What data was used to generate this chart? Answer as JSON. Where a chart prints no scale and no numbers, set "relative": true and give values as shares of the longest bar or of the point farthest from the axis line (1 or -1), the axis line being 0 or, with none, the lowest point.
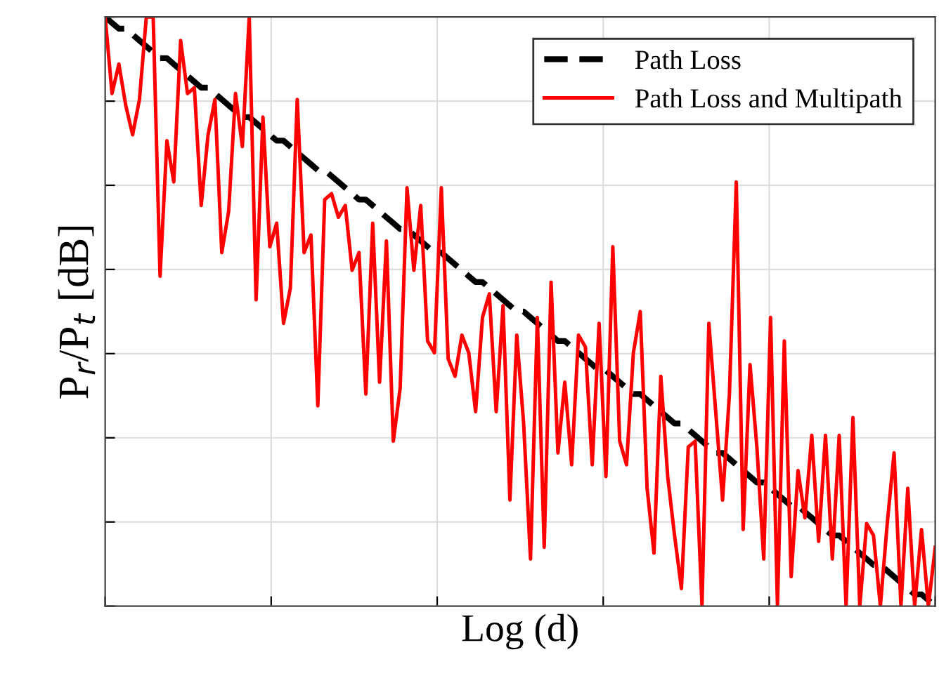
{
  "chart_data": {
    "type": "line",
    "relative": true,
    "xlabel": "Log (d)",
    "ylabel": "P$_{r}$/P$_{t}$ [dB]",
    "grid": true,
    "legend": "top right",
    "tick_labels": false,
    "categories": [
      null,
      null,
      null,
      null,
      null,
      null,
      null,
      null,
      null,
      null,
      null,
      null,
      null,
      null,
      null,
      null,
      null,
      null,
      null,
      null,
      null,
      null,
      null,
      null,
      null,
      null,
      null,
      null,
      null,
      null,
      null,
      null,
      null,
      null,
      null,
      null,
      null,
      null,
      null,
      null,
      null,
      null,
      null,
      null,
      null,
      null,
      null,
      null,
      null,
      null,
      null,
      null,
      null,
      null,
      null,
      null,
      null,
      null,
      null,
      null,
      null,
      null,
      null,
      null,
      null,
      null,
      null,
      null,
      null,
      null,
      null,
      null,
      null,
      null,
      null,
      null,
      null,
      null,
      null,
      null,
      null,
      null,
      null,
      null,
      null,
      null,
      null,
      null,
      null,
      null,
      null,
      null,
      null,
      null,
      null,
      null,
      null,
      null,
      null,
      null,
      null,
      null,
      null,
      null,
      null,
      null,
      null,
      null,
      null,
      null,
      null,
      null,
      null,
      null,
      null,
      null,
      null,
      null,
      null,
      null,
      null,
      null
    ],
    "series": [
      {
        "name": "Path Loss",
        "color": "#000000",
        "line_style": "dashed",
        "values": [
          1.0,
          0.99,
          0.98,
          0.98,
          0.97,
          0.96,
          0.95,
          0.94,
          0.93,
          0.93,
          0.92,
          0.91,
          0.9,
          0.89,
          0.88,
          0.88,
          0.87,
          0.86,
          0.85,
          0.84,
          0.83,
          0.83,
          0.82,
          0.81,
          0.8,
          0.79,
          0.79,
          0.78,
          0.77,
          0.76,
          0.75,
          0.74,
          0.74,
          0.73,
          0.72,
          0.71,
          0.7,
          0.69,
          0.69,
          0.68,
          0.67,
          0.66,
          0.65,
          0.64,
          0.64,
          0.63,
          0.62,
          0.61,
          0.6,
          0.6,
          0.59,
          0.58,
          0.57,
          0.56,
          0.55,
          0.55,
          0.54,
          0.53,
          0.52,
          0.51,
          0.5,
          0.5,
          0.49,
          0.48,
          0.47,
          0.46,
          0.45,
          0.45,
          0.44,
          0.43,
          0.42,
          0.41,
          0.4,
          0.4,
          0.39,
          0.38,
          0.37,
          0.36,
          0.36,
          0.35,
          0.34,
          0.33,
          0.32,
          0.31,
          0.31,
          0.3,
          0.29,
          0.28,
          0.27,
          0.26,
          0.26,
          0.25,
          0.24,
          0.23,
          0.22,
          0.21,
          0.21,
          0.2,
          0.19,
          0.18,
          0.17,
          0.17,
          0.16,
          0.15,
          0.14,
          0.13,
          0.12,
          0.12,
          0.11,
          0.1,
          0.09,
          0.08,
          0.07,
          0.07,
          0.06,
          0.05,
          0.04,
          0.03,
          0.02,
          0.02,
          0.01,
          0.0
        ]
      },
      {
        "name": "Path Loss and Multipath",
        "color": "#ff0000",
        "line_style": "solid",
        "values": [
          1.0,
          0.87,
          0.92,
          0.85,
          0.8,
          0.86,
          1.0,
          1.0,
          0.56,
          0.79,
          0.72,
          0.96,
          0.87,
          0.88,
          0.68,
          0.8,
          0.86,
          0.6,
          0.67,
          0.87,
          0.78,
          1.0,
          0.52,
          0.83,
          0.61,
          0.65,
          0.48,
          0.54,
          0.86,
          0.6,
          0.63,
          0.34,
          0.69,
          0.7,
          0.66,
          0.68,
          0.57,
          0.6,
          0.36,
          0.65,
          0.38,
          0.62,
          0.28,
          0.37,
          0.71,
          0.57,
          0.68,
          0.45,
          0.43,
          0.71,
          0.42,
          0.39,
          0.46,
          0.43,
          0.33,
          0.49,
          0.53,
          0.33,
          0.51,
          0.18,
          0.46,
          0.31,
          0.08,
          0.49,
          0.1,
          0.55,
          0.26,
          0.38,
          0.24,
          0.46,
          0.44,
          0.24,
          0.48,
          0.22,
          0.61,
          0.28,
          0.24,
          0.43,
          0.5,
          0.2,
          0.09,
          0.39,
          0.22,
          0.12,
          0.03,
          0.27,
          0.28,
          0.0,
          0.48,
          0.33,
          0.18,
          0.36,
          0.72,
          0.13,
          0.41,
          0.27,
          0.08,
          0.49,
          0.0,
          0.45,
          0.05,
          0.23,
          0.15,
          0.29,
          0.11,
          0.29,
          0.08,
          0.29,
          0.0,
          0.32,
          0.0,
          0.14,
          0.12,
          0.0,
          0.14,
          0.26,
          0.0,
          0.2,
          0.0,
          0.13,
          0.0,
          0.1
        ]
      }
    ]
  }
}
